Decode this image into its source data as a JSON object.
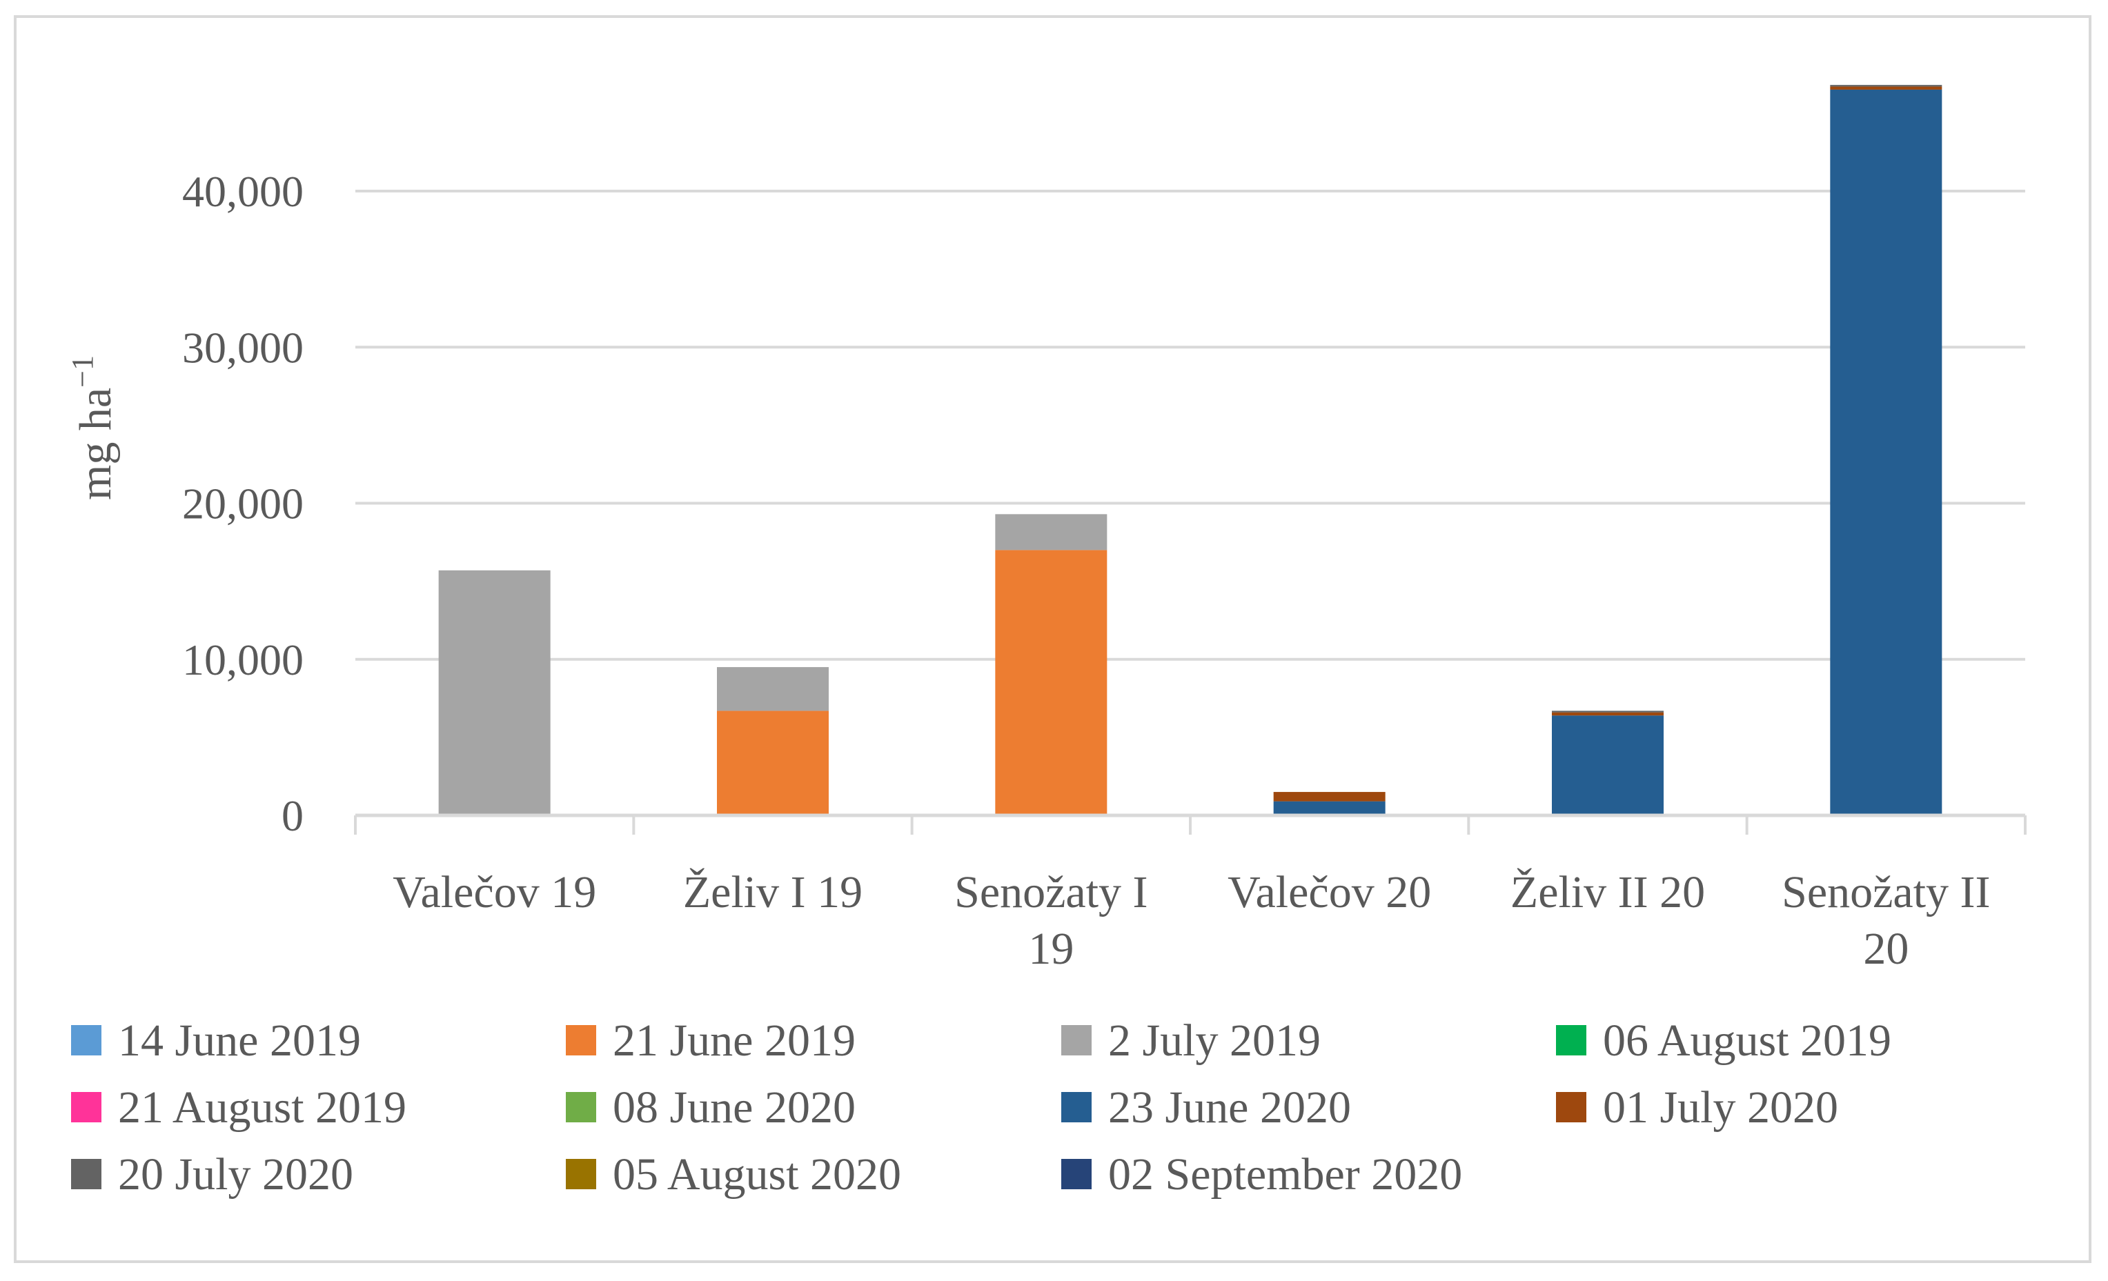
{
  "chart_data": {
    "type": "bar",
    "stacked": true,
    "title": "",
    "xlabel": "",
    "ylabel": "mg ha",
    "ylabel_superscript": "−1",
    "ylim": [
      0,
      47000
    ],
    "yticks": [
      0,
      10000,
      20000,
      30000,
      40000
    ],
    "ytick_labels": [
      "0",
      "10,000",
      "20,000",
      "30,000",
      "40,000"
    ],
    "grid": true,
    "legend_position": "bottom",
    "categories": [
      [
        "Valečov 19"
      ],
      [
        "Želiv I 19"
      ],
      [
        "Senožaty I",
        "19"
      ],
      [
        "Valečov 20"
      ],
      [
        "Želiv II 20"
      ],
      [
        "Senožaty II",
        "20"
      ]
    ],
    "series": [
      {
        "name": "14 June 2019",
        "color": "#5b9bd5",
        "values": [
          0,
          0,
          0,
          0,
          0,
          0
        ]
      },
      {
        "name": "21 June 2019",
        "color": "#ed7d31",
        "values": [
          0,
          6700,
          17000,
          0,
          0,
          0
        ]
      },
      {
        "name": "2 July 2019",
        "color": "#a5a5a5",
        "values": [
          15700,
          2800,
          2300,
          0,
          0,
          0
        ]
      },
      {
        "name": "06 August 2019",
        "color": "#00b050",
        "values": [
          0,
          0,
          0,
          0,
          0,
          0
        ]
      },
      {
        "name": "21 August 2019",
        "color": "#ff3399",
        "values": [
          0,
          0,
          0,
          0,
          0,
          0
        ]
      },
      {
        "name": "08 June 2020",
        "color": "#70ad47",
        "values": [
          0,
          0,
          0,
          0,
          0,
          0
        ]
      },
      {
        "name": "23 June 2020",
        "color": "#255e91",
        "values": [
          0,
          0,
          0,
          900,
          6400,
          46500
        ]
      },
      {
        "name": "01 July 2020",
        "color": "#9e480e",
        "values": [
          0,
          0,
          0,
          600,
          200,
          200
        ]
      },
      {
        "name": "20 July 2020",
        "color": "#636363",
        "values": [
          0,
          0,
          0,
          0,
          100,
          100
        ]
      },
      {
        "name": "05 August 2020",
        "color": "#997300",
        "values": [
          0,
          0,
          0,
          0,
          0,
          0
        ]
      },
      {
        "name": "02 September 2020",
        "color": "#264478",
        "values": [
          0,
          0,
          0,
          0,
          0,
          0
        ]
      }
    ]
  }
}
